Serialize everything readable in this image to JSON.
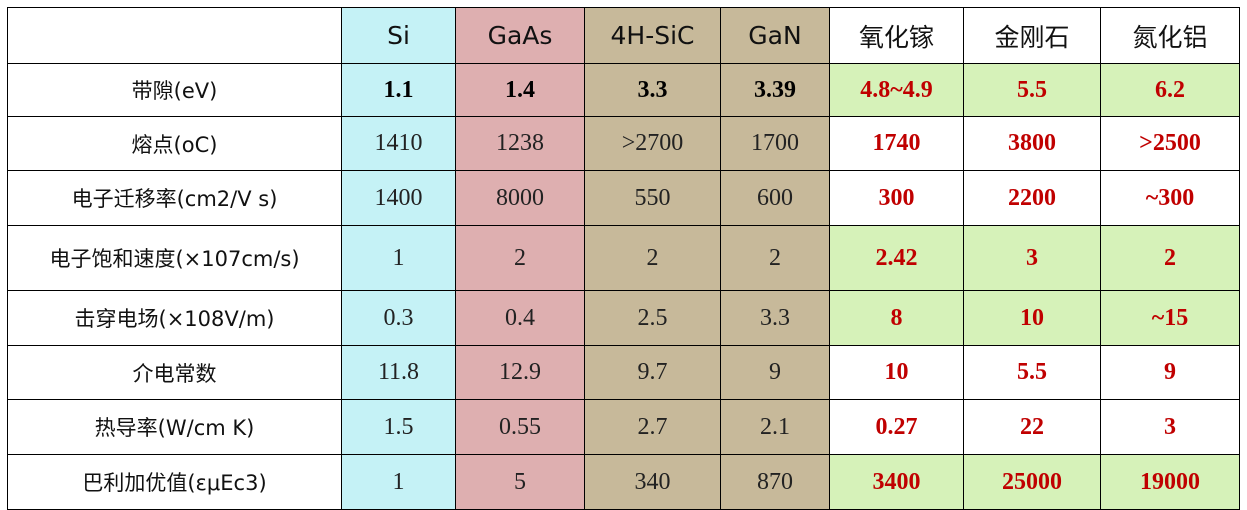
{
  "header": {
    "corner": "",
    "si": "Si",
    "gaas": "GaAs",
    "sic": "4H-SiC",
    "gan": "GaN",
    "ga2o3": "氧化镓",
    "diamond": "金刚石",
    "aln": "氮化铝"
  },
  "rows": [
    {
      "label": "带隙(eV)",
      "si": "1.1",
      "gaas": "1.4",
      "sic": "3.3",
      "gan": "3.39",
      "ga2o3": "4.8~4.9",
      "diamond": "5.5",
      "aln": "6.2"
    },
    {
      "label": "熔点(oC)",
      "si": "1410",
      "gaas": "1238",
      "sic": ">2700",
      "gan": "1700",
      "ga2o3": "1740",
      "diamond": "3800",
      "aln": ">2500"
    },
    {
      "label": "电子迁移率(cm2/V s)",
      "si": "1400",
      "gaas": "8000",
      "sic": "550",
      "gan": "600",
      "ga2o3": "300",
      "diamond": "2200",
      "aln": "~300"
    },
    {
      "label": "电子饱和速度(×107cm/s)",
      "si": "1",
      "gaas": "2",
      "sic": "2",
      "gan": "2",
      "ga2o3": "2.42",
      "diamond": "3",
      "aln": "2"
    },
    {
      "label": "击穿电场(×108V/m)",
      "si": "0.3",
      "gaas": "0.4",
      "sic": "2.5",
      "gan": "3.3",
      "ga2o3": "8",
      "diamond": "10",
      "aln": "~15"
    },
    {
      "label": "介电常数",
      "si": "11.8",
      "gaas": "12.9",
      "sic": "9.7",
      "gan": "9",
      "ga2o3": "10",
      "diamond": "5.5",
      "aln": "9"
    },
    {
      "label": "热导率(W/cm K)",
      "si": "1.5",
      "gaas": "0.55",
      "sic": "2.7",
      "gan": "2.1",
      "ga2o3": "0.27",
      "diamond": "22",
      "aln": "3"
    },
    {
      "label": "巴利加优值(εμEc3)",
      "si": "1",
      "gaas": "5",
      "sic": "340",
      "gan": "870",
      "ga2o3": "3400",
      "diamond": "25000",
      "aln": "19000"
    }
  ],
  "colors": {
    "si_column": "#c5f2f6",
    "gaas_column": "#deafb0",
    "sic_gan_columns": "#c7b99a",
    "highlight_green": "#d6f2b9",
    "red_value_text": "#c00000",
    "border": "#000000"
  }
}
